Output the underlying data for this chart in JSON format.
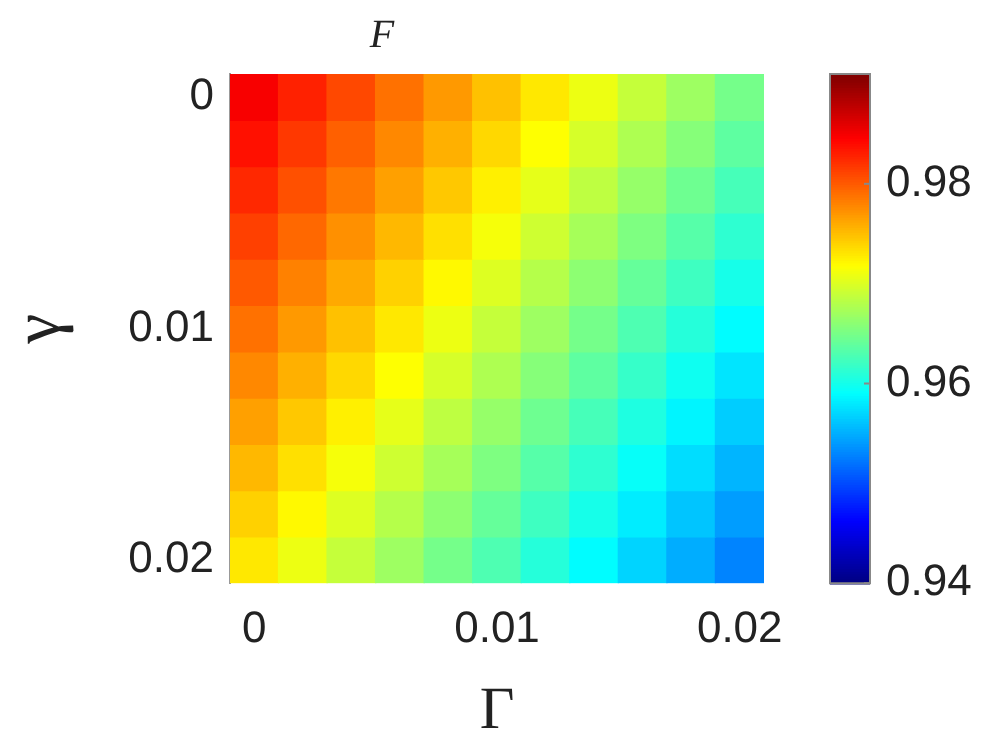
{
  "chart_data": {
    "type": "heatmap",
    "title": "F",
    "xlabel": "Γ",
    "ylabel": "γ",
    "categories": [
      "0",
      null,
      null,
      null,
      null,
      "0.01",
      null,
      null,
      null,
      null,
      "0.02"
    ],
    "y_categories": [
      "0",
      null,
      null,
      null,
      null,
      "0.01",
      null,
      null,
      null,
      null,
      "0.02"
    ],
    "cells": [
      [
        0.985,
        0.983,
        0.981,
        0.979,
        0.977,
        0.975,
        0.973,
        0.971,
        0.969,
        0.967,
        0.965
      ],
      [
        0.9838,
        0.9818,
        0.9798,
        0.9778,
        0.9758,
        0.9738,
        0.9718,
        0.9698,
        0.9678,
        0.9658,
        0.9638
      ],
      [
        0.9826,
        0.9806,
        0.9786,
        0.9766,
        0.9746,
        0.9726,
        0.9706,
        0.9686,
        0.9666,
        0.9646,
        0.9626
      ],
      [
        0.9814,
        0.9794,
        0.9774,
        0.9754,
        0.9734,
        0.9714,
        0.9694,
        0.9674,
        0.9654,
        0.9634,
        0.9614
      ],
      [
        0.9802,
        0.9782,
        0.9762,
        0.9742,
        0.9722,
        0.9702,
        0.9682,
        0.9662,
        0.9642,
        0.9622,
        0.9602
      ],
      [
        0.979,
        0.977,
        0.975,
        0.973,
        0.971,
        0.969,
        0.967,
        0.965,
        0.963,
        0.961,
        0.959
      ],
      [
        0.9778,
        0.9758,
        0.9738,
        0.9718,
        0.9698,
        0.9678,
        0.9658,
        0.9638,
        0.9618,
        0.9598,
        0.9578
      ],
      [
        0.9766,
        0.9746,
        0.9726,
        0.9706,
        0.9686,
        0.9666,
        0.9646,
        0.9626,
        0.9606,
        0.9586,
        0.9566
      ],
      [
        0.9754,
        0.9734,
        0.9714,
        0.9694,
        0.9674,
        0.9654,
        0.9634,
        0.9614,
        0.9594,
        0.9574,
        0.9554
      ],
      [
        0.9742,
        0.9722,
        0.9702,
        0.9682,
        0.9662,
        0.9642,
        0.9622,
        0.9602,
        0.9582,
        0.9562,
        0.9542
      ],
      [
        0.973,
        0.971,
        0.969,
        0.967,
        0.965,
        0.963,
        0.961,
        0.959,
        0.957,
        0.955,
        0.953
      ]
    ],
    "clim": [
      0.94,
      0.991
    ],
    "cticks": [
      0.94,
      0.96,
      0.98
    ]
  }
}
